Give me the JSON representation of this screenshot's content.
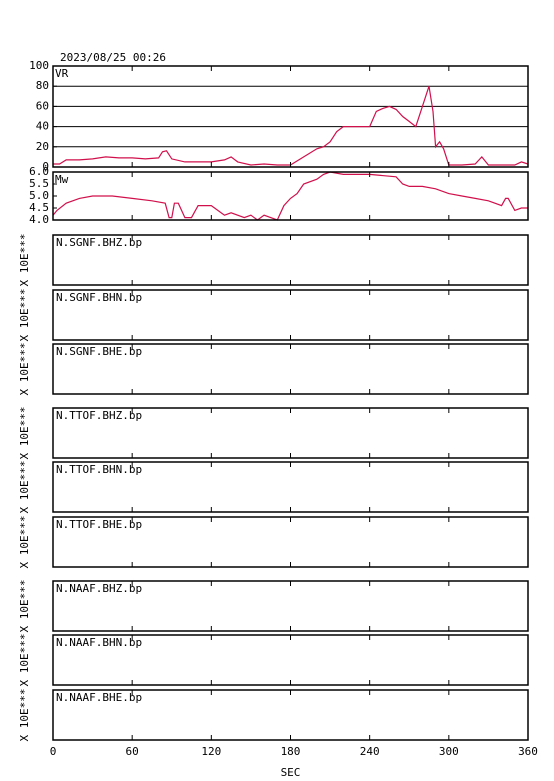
{
  "title": "2023/08/25 00:26",
  "x_axis": {
    "label": "SEC",
    "xlim": [
      0,
      360
    ],
    "xticks": [
      0,
      60,
      120,
      180,
      240,
      300,
      360
    ]
  },
  "chart_data": [
    {
      "type": "line",
      "ylabel": "VR",
      "color": "#d0104c",
      "ylim": [
        0,
        100
      ],
      "yticks": [
        0,
        20,
        40,
        60,
        80,
        100
      ],
      "grid": true,
      "x": [
        0,
        5,
        10,
        20,
        30,
        40,
        50,
        60,
        70,
        80,
        83,
        86,
        90,
        100,
        110,
        120,
        130,
        135,
        140,
        150,
        160,
        170,
        180,
        190,
        200,
        205,
        210,
        215,
        220,
        230,
        240,
        245,
        250,
        255,
        260,
        265,
        270,
        275,
        280,
        285,
        288,
        290,
        293,
        296,
        300,
        310,
        320,
        325,
        330,
        340,
        350,
        355,
        360
      ],
      "values": [
        3,
        3,
        7,
        7,
        8,
        10,
        9,
        9,
        8,
        9,
        15,
        16,
        8,
        5,
        5,
        5,
        7,
        10,
        5,
        2,
        3,
        2,
        2,
        10,
        18,
        20,
        25,
        35,
        40,
        40,
        40,
        55,
        58,
        60,
        57,
        50,
        45,
        40,
        60,
        80,
        55,
        20,
        25,
        18,
        2,
        2,
        3,
        10,
        2,
        2,
        2,
        5,
        3
      ]
    },
    {
      "type": "line",
      "ylabel": "Mw",
      "color": "#d0104c",
      "ylim": [
        4,
        6
      ],
      "yticks": [
        {
          "value": 4,
          "label": "4.0"
        },
        {
          "value": 4.5,
          "label": "4.5"
        },
        {
          "value": 5,
          "label": "5.0"
        },
        {
          "value": 5.5,
          "label": "5.5"
        },
        {
          "value": 6,
          "label": "6.0"
        }
      ],
      "x": [
        0,
        3,
        10,
        20,
        30,
        45,
        60,
        75,
        85,
        88,
        90,
        92,
        95,
        100,
        105,
        110,
        120,
        130,
        135,
        145,
        150,
        155,
        160,
        170,
        175,
        180,
        185,
        190,
        200,
        205,
        210,
        220,
        240,
        260,
        265,
        270,
        280,
        290,
        300,
        310,
        320,
        330,
        340,
        343,
        345,
        350,
        355,
        360
      ],
      "values": [
        4.2,
        4.4,
        4.7,
        4.9,
        5.0,
        5.0,
        4.9,
        4.8,
        4.7,
        4.1,
        4.1,
        4.7,
        4.7,
        4.1,
        4.1,
        4.6,
        4.6,
        4.2,
        4.3,
        4.1,
        4.2,
        4.0,
        4.2,
        4.0,
        4.6,
        4.9,
        5.1,
        5.5,
        5.7,
        5.9,
        6.0,
        5.9,
        5.9,
        5.8,
        5.5,
        5.4,
        5.4,
        5.3,
        5.1,
        5.0,
        4.9,
        4.8,
        4.6,
        4.9,
        4.9,
        4.4,
        4.5,
        4.5
      ]
    }
  ],
  "traces": [
    {
      "name": "N.SGNF.BHZ.bp",
      "scale": "X 10E***"
    },
    {
      "name": "N.SGNF.BHN.bp",
      "scale": "X 10E***"
    },
    {
      "name": "N.SGNF.BHE.bp",
      "scale": "X 10E***"
    },
    {
      "name": "N.TTOF.BHZ.bp",
      "scale": "X 10E***"
    },
    {
      "name": "N.TTOF.BHN.bp",
      "scale": "X 10E***"
    },
    {
      "name": "N.TTOF.BHE.bp",
      "scale": "X 10E***"
    },
    {
      "name": "N.NAAF.BHZ.bp",
      "scale": "X 10E***"
    },
    {
      "name": "N.NAAF.BHN.bp",
      "scale": "X 10E***"
    },
    {
      "name": "N.NAAF.BHE.bp",
      "scale": "X 10E***"
    }
  ]
}
